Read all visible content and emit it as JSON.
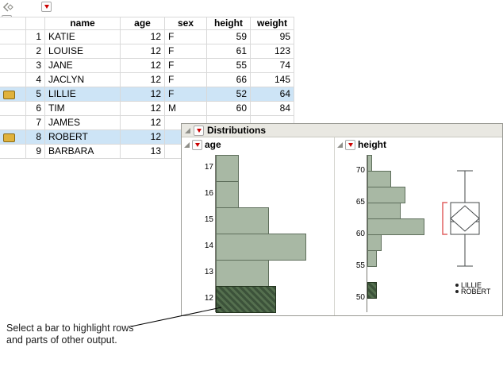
{
  "colors": {
    "selection_blue": "#cde4f6",
    "bar_fill": "#a8b8a4",
    "bar_border": "#5f6f5c",
    "bar_selected_fill": "#3c523a",
    "titlebar_bg": "#e9e8e2",
    "red_triangle": "#cc0000",
    "row_marker_gold": "#e0b23c",
    "shortest_half_bracket_red": "#e06060"
  },
  "icons": {
    "red_triangle_menu": "red triangle drop-down button",
    "disclosure_open": "gray corner triangle (expanded)",
    "panel_collapse": "chevron-left with diamond",
    "columns_list": "three horizontal lines",
    "row_state_marker": "gold tag on selected rows"
  },
  "table": {
    "columns": [
      "name",
      "age",
      "sex",
      "height",
      "weight"
    ],
    "rows": [
      {
        "num": "1",
        "name": "KATIE",
        "age": "12",
        "sex": "F",
        "height": "59",
        "weight": "95",
        "selected": false,
        "marker": false
      },
      {
        "num": "2",
        "name": "LOUISE",
        "age": "12",
        "sex": "F",
        "height": "61",
        "weight": "123",
        "selected": false,
        "marker": false
      },
      {
        "num": "3",
        "name": "JANE",
        "age": "12",
        "sex": "F",
        "height": "55",
        "weight": "74",
        "selected": false,
        "marker": false
      },
      {
        "num": "4",
        "name": "JACLYN",
        "age": "12",
        "sex": "F",
        "height": "66",
        "weight": "145",
        "selected": false,
        "marker": false
      },
      {
        "num": "5",
        "name": "LILLIE",
        "age": "12",
        "sex": "F",
        "height": "52",
        "weight": "64",
        "selected": true,
        "marker": true
      },
      {
        "num": "6",
        "name": "TIM",
        "age": "12",
        "sex": "M",
        "height": "60",
        "weight": "84",
        "selected": false,
        "marker": false
      },
      {
        "num": "7",
        "name": "JAMES",
        "age": "12",
        "sex": "",
        "height": "",
        "weight": "",
        "selected": false,
        "marker": false
      },
      {
        "num": "8",
        "name": "ROBERT",
        "age": "12",
        "sex": "",
        "height": "",
        "weight": "",
        "selected": true,
        "marker": true
      },
      {
        "num": "9",
        "name": "BARBARA",
        "age": "13",
        "sex": "",
        "height": "",
        "weight": "",
        "selected": false,
        "marker": false
      }
    ]
  },
  "distributions": {
    "window_title": "Distributions",
    "panel_titles": [
      "age",
      "height"
    ]
  },
  "chart_data": [
    {
      "type": "bar",
      "subtype": "histogram",
      "title": "age",
      "orientation": "horizontal",
      "categories": [
        "17",
        "16",
        "15",
        "14",
        "13",
        "12"
      ],
      "values": [
        3,
        3,
        7,
        12,
        7,
        8
      ],
      "selected_category": "12",
      "ylabel": "age",
      "xlabel": "",
      "grid": false,
      "legend": "none"
    },
    {
      "type": "bar",
      "subtype": "histogram-with-outlier-boxplot",
      "title": "height",
      "orientation": "horizontal",
      "axis_ticks": [
        "70",
        "65",
        "60",
        "55",
        "50"
      ],
      "axis_range": [
        47.5,
        72.5
      ],
      "bin_width": 2.5,
      "bins": [
        {
          "low": 70,
          "count": 1,
          "selected": false
        },
        {
          "low": 67.5,
          "count": 5,
          "selected": false
        },
        {
          "low": 65,
          "count": 8,
          "selected": false
        },
        {
          "low": 62.5,
          "count": 7,
          "selected": false
        },
        {
          "low": 60,
          "count": 12,
          "selected": false
        },
        {
          "low": 57.5,
          "count": 3,
          "selected": false
        },
        {
          "low": 55,
          "count": 2,
          "selected": false
        },
        {
          "low": 52.5,
          "count": 0,
          "selected": false
        },
        {
          "low": 50,
          "count": 2,
          "selected": true
        }
      ],
      "boxplot": {
        "whisker_low": 55,
        "q1": 60,
        "median": 62,
        "q3": 65,
        "whisker_high": 70,
        "mean_diamond": 62.5,
        "shortest_half": [
          60,
          65
        ]
      },
      "labeled_points": [
        {
          "label": "LILLIE",
          "value": 52
        },
        {
          "label": "ROBERT",
          "value": 51
        }
      ],
      "grid": false,
      "legend": "none"
    }
  ],
  "annotation": {
    "line1": "Select a bar to highlight rows",
    "line2": "and parts of other output."
  }
}
